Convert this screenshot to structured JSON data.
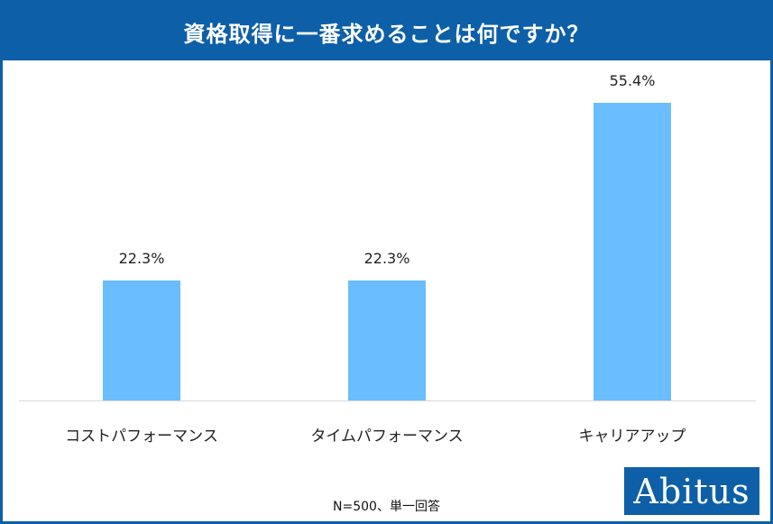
{
  "title": "資格取得に一番求めることは何ですか？",
  "footnote": "N=500、単一回答",
  "logo_text": "Abitus",
  "colors": {
    "brand": "#0d5fa8",
    "bar": "#6abdff"
  },
  "chart_data": {
    "type": "bar",
    "title": "資格取得に一番求めることは何ですか？",
    "categories": [
      "コストパフォーマンス",
      "タイムパフォーマンス",
      "キャリアアップ"
    ],
    "values": [
      22.3,
      22.3,
      55.4
    ],
    "value_labels": [
      "22.3%",
      "22.3%",
      "55.4%"
    ],
    "unit": "%",
    "xlabel": "",
    "ylabel": "",
    "ylim": [
      0,
      100
    ],
    "grid": false,
    "legend": "none"
  }
}
